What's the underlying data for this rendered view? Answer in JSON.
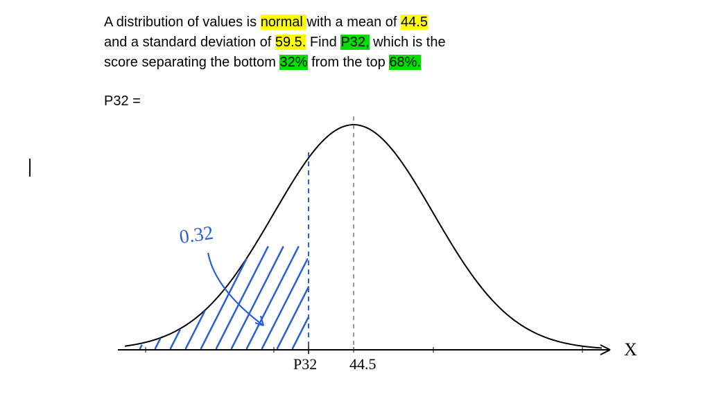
{
  "problem": {
    "line1_a": "A distribution of values is ",
    "hl_normal": "normal ",
    "line1_b": "with a mean of ",
    "hl_mean": "44.5",
    "line2_a": "and a standard deviation of ",
    "hl_sd": "59.5.",
    "line2_b": " Find ",
    "hl_p32": "P32,",
    "line2_c": " which is the",
    "line3_a": "score separating the bottom ",
    "hl_bottom": "32%",
    "line3_b": " from the top ",
    "hl_top": "68%."
  },
  "answer_label": "P32 =",
  "side_mark": "|",
  "chart": {
    "type": "normal-distribution-sketch",
    "curve_color": "#000000",
    "curve_width": 2,
    "axis_color": "#000000",
    "axis_width": 2,
    "dash_color": "#555555",
    "hatch_color": "#2a5fd6",
    "hatch_width": 2.5,
    "annotation_color": "#2a5fd6",
    "annotation_text": "0.32",
    "annotation_fontsize": 28,
    "p32_dash_color": "#2a5fd6",
    "axis_label": "X",
    "axis_label_fontsize": 26,
    "mean_label": "44.5",
    "p32_label": "P32",
    "label_fontsize": 22,
    "handwriting_font": "Comic Sans MS"
  }
}
